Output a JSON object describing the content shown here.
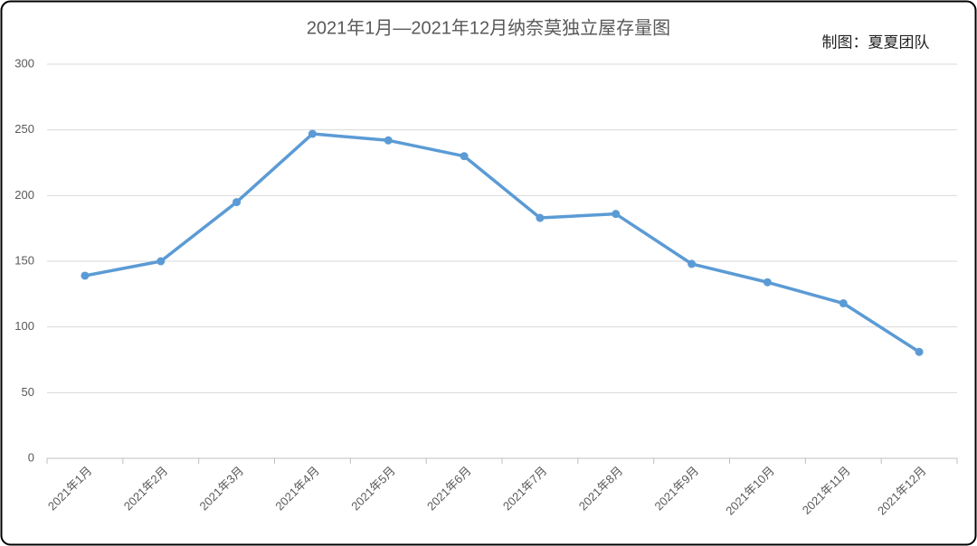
{
  "chart_data": {
    "type": "line",
    "title": "2021年1月—2021年12月纳奈莫独立屋存量图",
    "annotation": "制图：夏夏团队",
    "categories": [
      "2021年1月",
      "2021年2月",
      "2021年3月",
      "2021年4月",
      "2021年5月",
      "2021年6月",
      "2021年7月",
      "2021年8月",
      "2021年9月",
      "2021年10月",
      "2021年11月",
      "2021年12月"
    ],
    "values": [
      139,
      150,
      195,
      247,
      242,
      230,
      183,
      186,
      148,
      134,
      118,
      81
    ],
    "color": "#5b9bd5",
    "ylim": [
      0,
      300
    ],
    "yticks": [
      0,
      50,
      100,
      150,
      200,
      250,
      300
    ],
    "grid": true
  }
}
